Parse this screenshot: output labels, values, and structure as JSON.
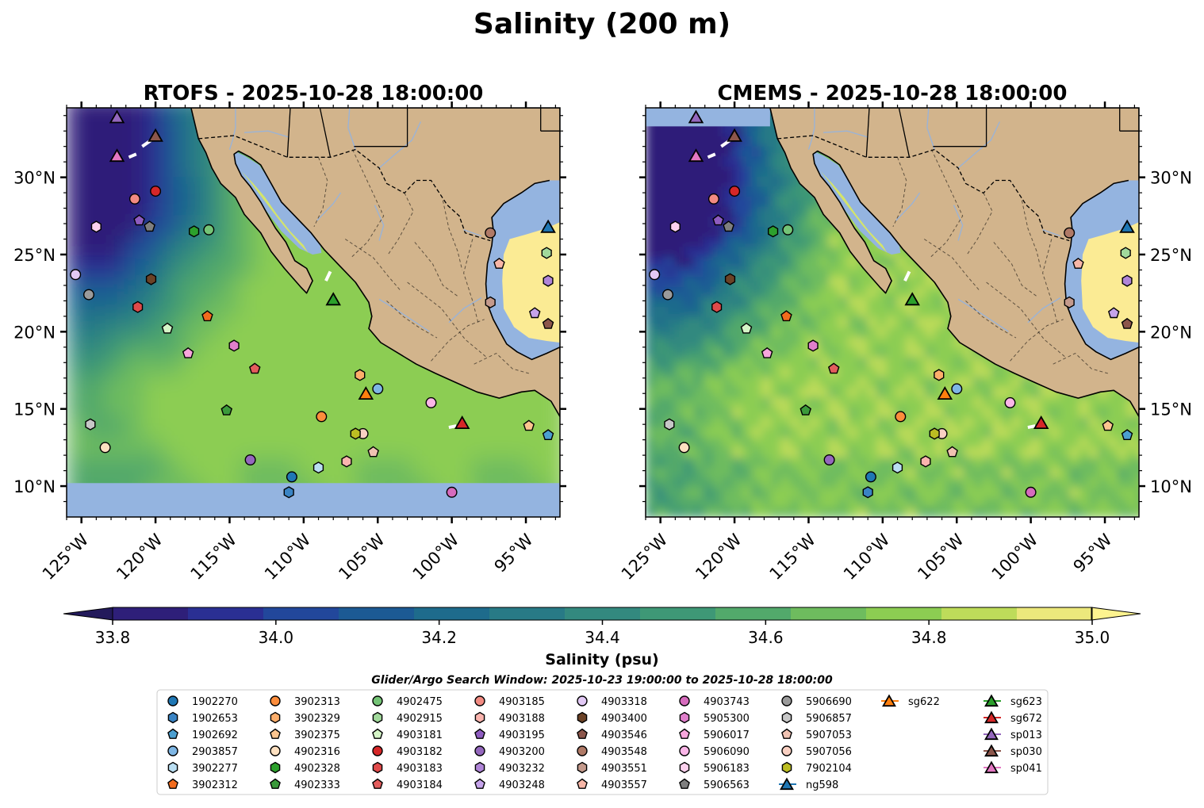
{
  "chart_data": {
    "type": "heatmap",
    "title": "Salinity (200 m)",
    "panels": [
      {
        "name": "RTOFS",
        "title": "RTOFS - 2025-10-28 18:00:00",
        "model": "rtofs"
      },
      {
        "name": "CMEMS",
        "title": "CMEMS - 2025-10-28 18:00:00",
        "model": "cmems"
      }
    ],
    "x_ticks": [
      {
        "value": -125,
        "label": "125°W"
      },
      {
        "value": -120,
        "label": "120°W"
      },
      {
        "value": -115,
        "label": "115°W"
      },
      {
        "value": -110,
        "label": "110°W"
      },
      {
        "value": -105,
        "label": "105°W"
      },
      {
        "value": -100,
        "label": "100°W"
      },
      {
        "value": -95,
        "label": "95°W"
      }
    ],
    "y_ticks": [
      {
        "value": 10,
        "label": "10°N"
      },
      {
        "value": 15,
        "label": "15°N"
      },
      {
        "value": 20,
        "label": "20°N"
      },
      {
        "value": 25,
        "label": "25°N"
      },
      {
        "value": 30,
        "label": "30°N"
      }
    ],
    "xlim": [
      -126,
      -92.7
    ],
    "ylim": [
      8,
      34.5
    ],
    "colorbar": {
      "label": "Salinity (psu)",
      "range": [
        33.8,
        35.0
      ],
      "ticks": [
        {
          "value": 33.8,
          "label": "33.8"
        },
        {
          "value": 34.0,
          "label": "34.0"
        },
        {
          "value": 34.2,
          "label": "34.2"
        },
        {
          "value": 34.4,
          "label": "34.4"
        },
        {
          "value": 34.6,
          "label": "34.6"
        },
        {
          "value": 34.8,
          "label": "34.8"
        },
        {
          "value": 35.0,
          "label": "35.0"
        }
      ],
      "colors": [
        "#2e1f79",
        "#2a2f93",
        "#22479b",
        "#1c5a94",
        "#1e6b8c",
        "#287a86",
        "#33897f",
        "#3e9876",
        "#52a96b",
        "#6ebc5e",
        "#8ccd52",
        "#bedc5a",
        "#ece87c"
      ],
      "extend": "both"
    },
    "search_window": "Glider/Argo Search Window: 2025-10-23 19:00:00 to 2025-10-28 18:00:00",
    "markers": [
      {
        "id": "1902270",
        "marker": "o",
        "color": "#1f77b4",
        "lon": -110.8,
        "lat": 10.6
      },
      {
        "id": "1902653",
        "marker": "h",
        "color": "#3a84c4",
        "lon": -111.0,
        "lat": 9.6
      },
      {
        "id": "1902692",
        "marker": "p",
        "color": "#4b9fd1",
        "lon": -93.5,
        "lat": 13.3
      },
      {
        "id": "2903857",
        "marker": "o",
        "color": "#7eb6e4",
        "lon": -105.0,
        "lat": 16.3
      },
      {
        "id": "3902277",
        "marker": "h",
        "color": "#b9def2",
        "lon": -109.0,
        "lat": 11.2
      },
      {
        "id": "3902312",
        "marker": "p",
        "color": "#f26b1d",
        "lon": -116.5,
        "lat": 21.0
      },
      {
        "id": "3902313",
        "marker": "o",
        "color": "#fd8d3c",
        "lon": -108.8,
        "lat": 14.5
      },
      {
        "id": "3902329",
        "marker": "h",
        "color": "#fdae6b",
        "lon": -106.2,
        "lat": 17.2
      },
      {
        "id": "3902375",
        "marker": "p",
        "color": "#fdc58f",
        "lon": -94.8,
        "lat": 13.9
      },
      {
        "id": "4902316",
        "marker": "o",
        "color": "#fde0c0",
        "lon": -123.4,
        "lat": 12.5
      },
      {
        "id": "4902328",
        "marker": "h",
        "color": "#2ca02c",
        "lon": -117.4,
        "lat": 26.5
      },
      {
        "id": "4902333",
        "marker": "p",
        "color": "#3b9a3b",
        "lon": -115.2,
        "lat": 14.9
      },
      {
        "id": "4902475",
        "marker": "o",
        "color": "#74c476",
        "lon": -116.4,
        "lat": 26.6
      },
      {
        "id": "4902915",
        "marker": "h",
        "color": "#a1d99b",
        "lon": -93.6,
        "lat": 25.1
      },
      {
        "id": "4903181",
        "marker": "p",
        "color": "#d5f5c7",
        "lon": -119.2,
        "lat": 20.2
      },
      {
        "id": "4903182",
        "marker": "o",
        "color": "#d62728",
        "lon": -120.0,
        "lat": 29.1
      },
      {
        "id": "4903183",
        "marker": "h",
        "color": "#e04a4a",
        "lon": -121.2,
        "lat": 21.6
      },
      {
        "id": "4903184",
        "marker": "p",
        "color": "#e35d5d",
        "lon": -113.3,
        "lat": 17.6
      },
      {
        "id": "4903185",
        "marker": "o",
        "color": "#f28b82",
        "lon": -121.4,
        "lat": 28.6
      },
      {
        "id": "4903188",
        "marker": "h",
        "color": "#fbb4ae",
        "lon": -107.1,
        "lat": 11.6
      },
      {
        "id": "4903195",
        "marker": "p",
        "color": "#8e5cc0",
        "lon": -121.1,
        "lat": 27.2
      },
      {
        "id": "4903200",
        "marker": "o",
        "color": "#9467bd",
        "lon": -113.6,
        "lat": 11.7
      },
      {
        "id": "4903232",
        "marker": "h",
        "color": "#b085d8",
        "lon": -93.5,
        "lat": 23.3
      },
      {
        "id": "4903248",
        "marker": "p",
        "color": "#c5a3ea",
        "lon": -94.4,
        "lat": 21.2
      },
      {
        "id": "4903318",
        "marker": "o",
        "color": "#e2c9f5",
        "lon": -125.4,
        "lat": 23.7
      },
      {
        "id": "4903400",
        "marker": "h",
        "color": "#6b4226",
        "lon": -120.3,
        "lat": 23.4
      },
      {
        "id": "4903546",
        "marker": "p",
        "color": "#8c564b",
        "lon": -93.5,
        "lat": 20.5
      },
      {
        "id": "4903548",
        "marker": "o",
        "color": "#b07a67",
        "lon": -97.4,
        "lat": 26.4
      },
      {
        "id": "4903551",
        "marker": "h",
        "color": "#c49a8c",
        "lon": -97.4,
        "lat": 21.9
      },
      {
        "id": "4903557",
        "marker": "p",
        "color": "#f7b6a7",
        "lon": -96.8,
        "lat": 24.4
      },
      {
        "id": "4903743",
        "marker": "o",
        "color": "#d66bbd",
        "lon": -100.0,
        "lat": 9.6
      },
      {
        "id": "5905300",
        "marker": "h",
        "color": "#e07fcb",
        "lon": -114.7,
        "lat": 19.1
      },
      {
        "id": "5906017",
        "marker": "p",
        "color": "#f7a6dc",
        "lon": -117.8,
        "lat": 18.6
      },
      {
        "id": "5906090",
        "marker": "o",
        "color": "#fbb6e8",
        "lon": -101.4,
        "lat": 15.4
      },
      {
        "id": "5906183",
        "marker": "h",
        "color": "#fcd1ee",
        "lon": -124.0,
        "lat": 26.8
      },
      {
        "id": "5906563",
        "marker": "p",
        "color": "#7f7f7f",
        "lon": -120.4,
        "lat": 26.8
      },
      {
        "id": "5906690",
        "marker": "o",
        "color": "#9b9b9b",
        "lon": -124.5,
        "lat": 22.4
      },
      {
        "id": "5906857",
        "marker": "h",
        "color": "#c7c7c7",
        "lon": -124.4,
        "lat": 14.0
      },
      {
        "id": "5907053",
        "marker": "p",
        "color": "#f0c2b2",
        "lon": -105.3,
        "lat": 12.2
      },
      {
        "id": "5907056",
        "marker": "o",
        "color": "#f9d0c2",
        "lon": -106.0,
        "lat": 13.4
      },
      {
        "id": "7902104",
        "marker": "h",
        "color": "#bcbd22",
        "lon": -106.5,
        "lat": 13.4
      },
      {
        "id": "ng598",
        "marker": "^",
        "color": "#1f77b4",
        "lon": -93.5,
        "lat": 26.8
      },
      {
        "id": "sg622",
        "marker": "^",
        "color": "#ff7f0e",
        "lon": -105.8,
        "lat": 16.0
      },
      {
        "id": "sg623",
        "marker": "^",
        "color": "#2ca02c",
        "lon": -108.0,
        "lat": 22.1
      },
      {
        "id": "sg672",
        "marker": "^",
        "color": "#d62728",
        "lon": -99.3,
        "lat": 14.1
      },
      {
        "id": "sp013",
        "marker": "^",
        "color": "#9467bd",
        "lon": -122.6,
        "lat": 33.9
      },
      {
        "id": "sp030",
        "marker": "^",
        "color": "#8c564b",
        "lon": -120.0,
        "lat": 32.7
      },
      {
        "id": "sp041",
        "marker": "^",
        "color": "#e377c2",
        "lon": -122.6,
        "lat": 31.4
      }
    ]
  }
}
